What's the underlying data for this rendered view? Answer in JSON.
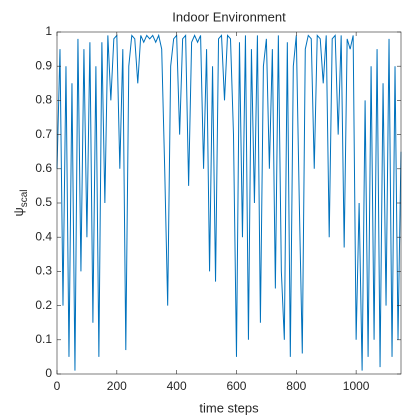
{
  "chart_data": {
    "type": "line",
    "title": "Indoor Environment",
    "xlabel": "time steps",
    "ylabel": "ψ",
    "ylabel_subscript": "scal",
    "x": [
      0,
      10,
      20,
      30,
      40,
      50,
      60,
      70,
      80,
      90,
      100,
      110,
      120,
      130,
      140,
      150,
      160,
      170,
      180,
      190,
      200,
      210,
      220,
      230,
      240,
      250,
      260,
      270,
      280,
      290,
      300,
      310,
      320,
      330,
      340,
      350,
      360,
      370,
      380,
      390,
      400,
      410,
      420,
      430,
      440,
      450,
      460,
      470,
      480,
      490,
      500,
      510,
      520,
      530,
      540,
      550,
      560,
      570,
      580,
      590,
      600,
      610,
      620,
      630,
      640,
      650,
      660,
      670,
      680,
      690,
      700,
      710,
      720,
      730,
      740,
      750,
      760,
      770,
      780,
      790,
      800,
      810,
      820,
      830,
      840,
      850,
      860,
      870,
      880,
      890,
      900,
      910,
      920,
      930,
      940,
      950,
      960,
      970,
      980,
      990,
      1000,
      1010,
      1020,
      1030,
      1040,
      1050,
      1060,
      1070,
      1080,
      1090,
      1100,
      1110,
      1120,
      1130,
      1140,
      1150
    ],
    "series": [
      {
        "name": "psi",
        "color": "#0072bd",
        "values": [
          0.6,
          0.95,
          0.2,
          0.9,
          0.05,
          0.85,
          0.01,
          0.98,
          0.3,
          0.95,
          0.4,
          0.97,
          0.15,
          0.9,
          0.05,
          0.97,
          0.5,
          0.99,
          0.8,
          0.98,
          0.99,
          0.6,
          0.95,
          0.07,
          0.9,
          0.99,
          0.98,
          0.85,
          0.99,
          0.97,
          0.99,
          0.98,
          0.99,
          0.97,
          0.99,
          0.95,
          0.6,
          0.2,
          0.9,
          0.98,
          0.99,
          0.7,
          0.98,
          0.99,
          0.55,
          0.97,
          0.99,
          0.97,
          0.99,
          0.6,
          0.95,
          0.3,
          0.9,
          0.27,
          0.98,
          0.99,
          0.8,
          0.99,
          0.98,
          0.7,
          0.05,
          0.97,
          0.4,
          0.99,
          0.1,
          0.95,
          0.5,
          0.99,
          0.15,
          0.9,
          0.98,
          0.6,
          0.95,
          0.25,
          0.99,
          0.3,
          0.1,
          0.97,
          0.05,
          0.9,
          0.99,
          0.5,
          0.06,
          0.95,
          0.99,
          0.98,
          0.6,
          0.99,
          0.98,
          0.85,
          0.99,
          0.4,
          0.98,
          0.99,
          0.7,
          0.99,
          0.37,
          0.98,
          0.95,
          0.99,
          0.1,
          0.5,
          0.01,
          0.8,
          0.05,
          0.9,
          0.1,
          0.95,
          0.02,
          0.85,
          0.2,
          0.98,
          0.05,
          0.9,
          0.1,
          0.65
        ]
      }
    ],
    "xlim": [
      0,
      1150
    ],
    "ylim": [
      0,
      1
    ],
    "xticks": [
      0,
      200,
      400,
      600,
      800,
      1000
    ],
    "yticks": [
      0,
      0.1,
      0.2,
      0.3,
      0.4,
      0.5,
      0.6,
      0.7,
      0.8,
      0.9,
      1
    ]
  }
}
